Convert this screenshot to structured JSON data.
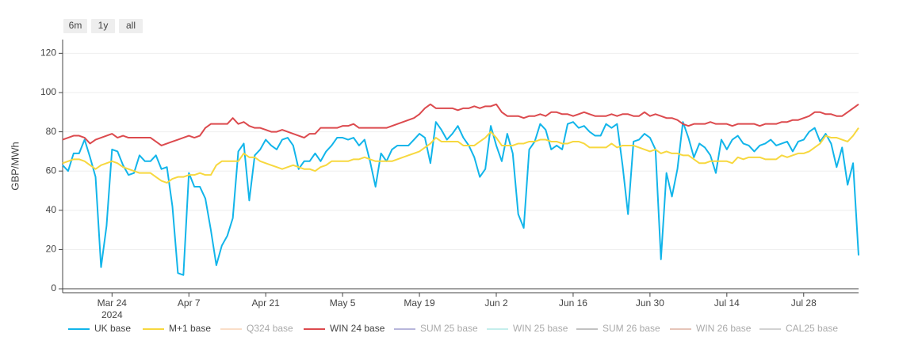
{
  "chart_data": {
    "type": "line",
    "buttons": [
      "6m",
      "1y",
      "all"
    ],
    "y_label": "GBP/MWh",
    "x": [
      "2024-03-15",
      "2024-03-16",
      "2024-03-17",
      "2024-03-18",
      "2024-03-19",
      "2024-03-20",
      "2024-03-21",
      "2024-03-22",
      "2024-03-23",
      "2024-03-24",
      "2024-03-25",
      "2024-03-26",
      "2024-03-27",
      "2024-03-28",
      "2024-03-29",
      "2024-03-30",
      "2024-03-31",
      "2024-04-01",
      "2024-04-02",
      "2024-04-03",
      "2024-04-04",
      "2024-04-05",
      "2024-04-06",
      "2024-04-07",
      "2024-04-08",
      "2024-04-09",
      "2024-04-10",
      "2024-04-11",
      "2024-04-12",
      "2024-04-13",
      "2024-04-14",
      "2024-04-15",
      "2024-04-16",
      "2024-04-17",
      "2024-04-18",
      "2024-04-19",
      "2024-04-20",
      "2024-04-21",
      "2024-04-22",
      "2024-04-23",
      "2024-04-24",
      "2024-04-25",
      "2024-04-26",
      "2024-04-27",
      "2024-04-28",
      "2024-04-29",
      "2024-04-30",
      "2024-05-01",
      "2024-05-02",
      "2024-05-03",
      "2024-05-04",
      "2024-05-05",
      "2024-05-06",
      "2024-05-07",
      "2024-05-08",
      "2024-05-09",
      "2024-05-10",
      "2024-05-11",
      "2024-05-12",
      "2024-05-13",
      "2024-05-14",
      "2024-05-15",
      "2024-05-16",
      "2024-05-17",
      "2024-05-18",
      "2024-05-19",
      "2024-05-20",
      "2024-05-21",
      "2024-05-22",
      "2024-05-23",
      "2024-05-24",
      "2024-05-25",
      "2024-05-26",
      "2024-05-27",
      "2024-05-28",
      "2024-05-29",
      "2024-05-30",
      "2024-05-31",
      "2024-06-01",
      "2024-06-02",
      "2024-06-03",
      "2024-06-04",
      "2024-06-05",
      "2024-06-06",
      "2024-06-07",
      "2024-06-08",
      "2024-06-09",
      "2024-06-10",
      "2024-06-11",
      "2024-06-12",
      "2024-06-13",
      "2024-06-14",
      "2024-06-15",
      "2024-06-16",
      "2024-06-17",
      "2024-06-18",
      "2024-06-19",
      "2024-06-20",
      "2024-06-21",
      "2024-06-22",
      "2024-06-23",
      "2024-06-24",
      "2024-06-25",
      "2024-06-26",
      "2024-06-27",
      "2024-06-28",
      "2024-06-29",
      "2024-06-30",
      "2024-07-01",
      "2024-07-02",
      "2024-07-03",
      "2024-07-04",
      "2024-07-05",
      "2024-07-06",
      "2024-07-07",
      "2024-07-08",
      "2024-07-09",
      "2024-07-10",
      "2024-07-11",
      "2024-07-12",
      "2024-07-13",
      "2024-07-14",
      "2024-07-15",
      "2024-07-16",
      "2024-07-17",
      "2024-07-18",
      "2024-07-19",
      "2024-07-20",
      "2024-07-21",
      "2024-07-22",
      "2024-07-23",
      "2024-07-24",
      "2024-07-25",
      "2024-07-26",
      "2024-07-27",
      "2024-07-28",
      "2024-07-29",
      "2024-07-30",
      "2024-07-31",
      "2024-08-01",
      "2024-08-02",
      "2024-08-03",
      "2024-08-04",
      "2024-08-05",
      "2024-08-06",
      "2024-08-07"
    ],
    "xlim": [
      "2024-03-15",
      "2024-08-07"
    ],
    "xticks": [
      {
        "value": "2024-03-24",
        "label": "Mar 24"
      },
      {
        "value": "2024-04-07",
        "label": "Apr 7"
      },
      {
        "value": "2024-04-21",
        "label": "Apr 21"
      },
      {
        "value": "2024-05-05",
        "label": "May 5"
      },
      {
        "value": "2024-05-19",
        "label": "May 19"
      },
      {
        "value": "2024-06-02",
        "label": "Jun 2"
      },
      {
        "value": "2024-06-16",
        "label": "Jun 16"
      },
      {
        "value": "2024-06-30",
        "label": "Jun 30"
      },
      {
        "value": "2024-07-14",
        "label": "Jul 14"
      },
      {
        "value": "2024-07-28",
        "label": "Jul 28"
      }
    ],
    "xtick_year": "2024",
    "ylim": [
      -2,
      127
    ],
    "yticks": [
      0,
      20,
      40,
      60,
      80,
      100,
      120
    ],
    "grid": true,
    "series": [
      {
        "name": "UK base",
        "color": "#12b5ea",
        "visible": true,
        "values": [
          63,
          60,
          69,
          69,
          76,
          67,
          57,
          11,
          32,
          71,
          70,
          63,
          58,
          59,
          68,
          65,
          65,
          68,
          61,
          62,
          42,
          8,
          7,
          59,
          52,
          52,
          46,
          30,
          12,
          22,
          27,
          36,
          70,
          74,
          45,
          68,
          71,
          76,
          73,
          71,
          76,
          77,
          73,
          61,
          65,
          65,
          69,
          65,
          70,
          73,
          77,
          77,
          76,
          77,
          73,
          76,
          65,
          52,
          69,
          65,
          71,
          73,
          73,
          73,
          76,
          79,
          77,
          64,
          85,
          81,
          76,
          79,
          83,
          77,
          73,
          67,
          57,
          61,
          83,
          73,
          65,
          79,
          69,
          38,
          31,
          71,
          75,
          84,
          81,
          71,
          73,
          71,
          84,
          85,
          82,
          83,
          80,
          78,
          78,
          84,
          82,
          84,
          63,
          38,
          75,
          76,
          79,
          77,
          71,
          15,
          59,
          47,
          61,
          85,
          77,
          67,
          74,
          72,
          68,
          59,
          76,
          71,
          76,
          78,
          74,
          73,
          70,
          73,
          74,
          76,
          73,
          74,
          75,
          70,
          75,
          76,
          80,
          82,
          75,
          79,
          74,
          62,
          72,
          53,
          64,
          17
        ]
      },
      {
        "name": "M+1 base",
        "color": "#f7d83f",
        "visible": true,
        "values": [
          64,
          65,
          66,
          66,
          65,
          63,
          61,
          63,
          64,
          65,
          64,
          62,
          61,
          60,
          59,
          59,
          59,
          57,
          55,
          54,
          56,
          57,
          57,
          58,
          58,
          59,
          58,
          58,
          63,
          65,
          65,
          65,
          65,
          69,
          67,
          67,
          65,
          64,
          63,
          62,
          61,
          62,
          63,
          62,
          61,
          61,
          60,
          62,
          63,
          65,
          65,
          65,
          65,
          66,
          66,
          67,
          66,
          65,
          65,
          65,
          65,
          66,
          67,
          68,
          69,
          70,
          72,
          74,
          77,
          75,
          75,
          75,
          75,
          73,
          73,
          73,
          75,
          77,
          80,
          77,
          73,
          73,
          73,
          74,
          74,
          75,
          75,
          76,
          76,
          75,
          75,
          74,
          74,
          75,
          75,
          74,
          72,
          72,
          72,
          72,
          74,
          72,
          73,
          73,
          73,
          72,
          71,
          70,
          71,
          69,
          70,
          69,
          69,
          68,
          68,
          66,
          64,
          64,
          65,
          65,
          65,
          65,
          64,
          67,
          66,
          67,
          67,
          67,
          66,
          66,
          66,
          68,
          67,
          68,
          69,
          69,
          70,
          72,
          74,
          78,
          77,
          77,
          76,
          75,
          78,
          82
        ]
      },
      {
        "name": "Q324 base",
        "color": "#f8c9a4",
        "visible": false
      },
      {
        "name": "WIN 24 base",
        "color": "#dc4a4e",
        "visible": true,
        "values": [
          76,
          77,
          78,
          78,
          77,
          74,
          76,
          77,
          78,
          79,
          77,
          78,
          77,
          77,
          77,
          77,
          77,
          75,
          73,
          74,
          75,
          76,
          77,
          78,
          77,
          78,
          82,
          84,
          84,
          84,
          84,
          87,
          84,
          85,
          83,
          82,
          82,
          81,
          80,
          80,
          81,
          80,
          79,
          78,
          77,
          79,
          79,
          82,
          82,
          82,
          82,
          83,
          83,
          84,
          82,
          82,
          82,
          82,
          82,
          82,
          83,
          84,
          85,
          86,
          87,
          89,
          92,
          94,
          92,
          92,
          92,
          92,
          91,
          92,
          92,
          93,
          92,
          93,
          93,
          94,
          90,
          88,
          88,
          88,
          87,
          88,
          88,
          89,
          88,
          90,
          90,
          89,
          89,
          88,
          89,
          90,
          89,
          88,
          88,
          88,
          89,
          88,
          89,
          89,
          88,
          88,
          90,
          88,
          89,
          88,
          87,
          87,
          86,
          84,
          83,
          84,
          84,
          84,
          85,
          84,
          84,
          84,
          83,
          84,
          84,
          84,
          84,
          83,
          84,
          84,
          84,
          85,
          85,
          86,
          86,
          87,
          88,
          90,
          90,
          89,
          89,
          88,
          88,
          90,
          92,
          94
        ]
      },
      {
        "name": "SUM 25 base",
        "color": "#8a86c4",
        "visible": false
      },
      {
        "name": "WIN 25 base",
        "color": "#9fe3e0",
        "visible": false
      },
      {
        "name": "SUM 26 base",
        "color": "#9a9a9a",
        "visible": false
      },
      {
        "name": "WIN 26 base",
        "color": "#d6a08c",
        "visible": false
      },
      {
        "name": "CAL25 base",
        "color": "#b5b5b5",
        "visible": false
      }
    ]
  }
}
